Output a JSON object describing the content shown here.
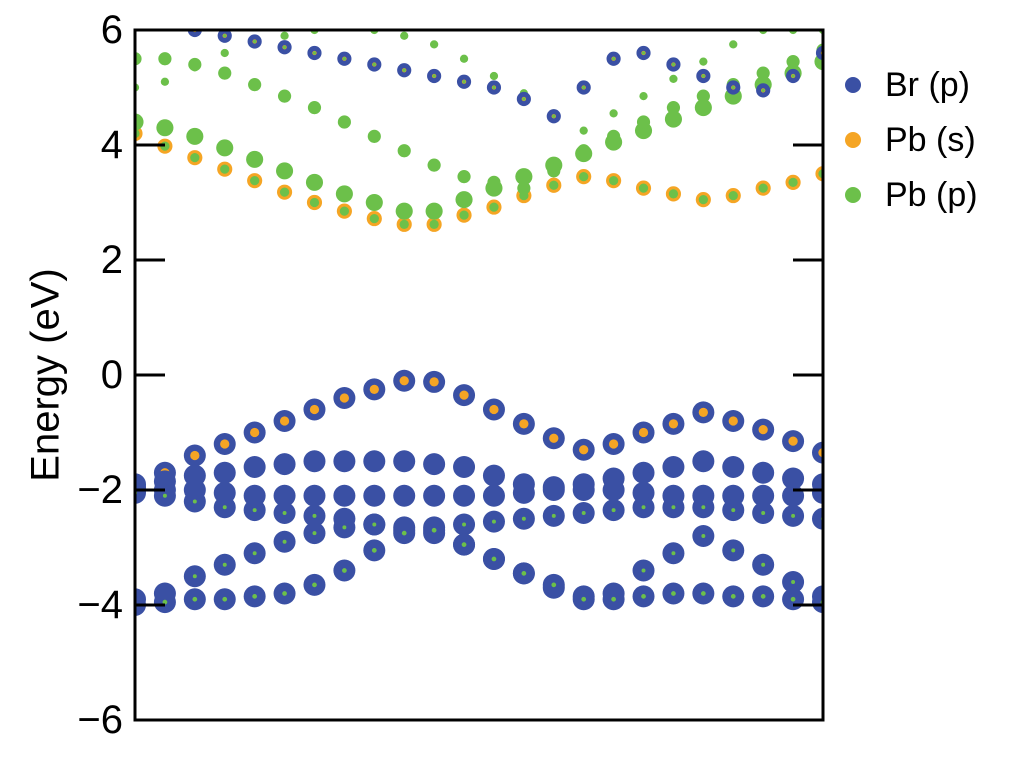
{
  "chart_data": {
    "type": "scatter",
    "title": "",
    "xlabel": "",
    "ylabel": "Energy (eV)",
    "ylim": [
      -6,
      6
    ],
    "yticks": [
      "6",
      "4",
      "2",
      "0",
      "−2",
      "−4",
      "−6"
    ],
    "ytick_values": [
      6,
      4,
      2,
      0,
      -2,
      -4,
      -6
    ],
    "xlim": [
      0,
      23
    ],
    "legend_position": "right",
    "colors": {
      "Br (p)": "#3a50a4",
      "Pb (s)": "#f5a524",
      "Pb (p)": "#6cc04a"
    },
    "series": [
      {
        "name": "Br (p)"
      },
      {
        "name": "Pb (s)"
      },
      {
        "name": "Pb (p)"
      }
    ],
    "bands": [
      {
        "role": "valence",
        "weights": {
          "Br (p)": 1.0,
          "Pb (s)": 0.35,
          "Pb (p)": 0.0
        },
        "e": [
          -1.9,
          -1.7,
          -1.4,
          -1.2,
          -1.0,
          -0.8,
          -0.6,
          -0.4,
          -0.25,
          -0.1,
          -0.12,
          -0.35,
          -0.6,
          -0.85,
          -1.1,
          -1.3,
          -1.2,
          -1.0,
          -0.85,
          -0.65,
          -0.8,
          -0.95,
          -1.15,
          -1.35
        ]
      },
      {
        "role": "valence",
        "weights": {
          "Br (p)": 1.0,
          "Pb (s)": 0.0,
          "Pb (p)": 0.0
        },
        "e": [
          -1.95,
          -1.85,
          -1.75,
          -1.7,
          -1.6,
          -1.55,
          -1.5,
          -1.5,
          -1.5,
          -1.5,
          -1.55,
          -1.6,
          -1.75,
          -1.9,
          -1.95,
          -1.9,
          -1.8,
          -1.7,
          -1.6,
          -1.5,
          -1.6,
          -1.7,
          -1.8,
          -1.9
        ]
      },
      {
        "role": "valence",
        "weights": {
          "Br (p)": 1.0,
          "Pb (s)": 0.0,
          "Pb (p)": 0.0
        },
        "e": [
          -2.0,
          -2.0,
          -2.0,
          -2.05,
          -2.1,
          -2.1,
          -2.1,
          -2.1,
          -2.1,
          -2.1,
          -2.1,
          -2.1,
          -2.1,
          -2.05,
          -2.0,
          -2.0,
          -2.0,
          -2.05,
          -2.1,
          -2.1,
          -2.1,
          -2.1,
          -2.1,
          -2.05
        ]
      },
      {
        "role": "valence",
        "weights": {
          "Br (p)": 1.0,
          "Pb (s)": 0.0,
          "Pb (p)": 0.08
        },
        "e": [
          -2.05,
          -2.1,
          -2.2,
          -2.3,
          -2.35,
          -2.4,
          -2.45,
          -2.5,
          -2.6,
          -2.65,
          -2.65,
          -2.6,
          -2.55,
          -2.5,
          -2.45,
          -2.4,
          -2.35,
          -2.3,
          -2.3,
          -2.3,
          -2.35,
          -2.4,
          -2.45,
          -2.5
        ]
      },
      {
        "role": "valence",
        "weights": {
          "Br (p)": 1.0,
          "Pb (s)": 0.0,
          "Pb (p)": 0.08
        },
        "e": [
          -3.9,
          -3.8,
          -3.5,
          -3.3,
          -3.1,
          -2.9,
          -2.75,
          -2.65,
          -2.6,
          -2.7,
          -2.75,
          -2.95,
          -3.2,
          -3.45,
          -3.7,
          -3.85,
          -3.8,
          -3.4,
          -3.1,
          -2.8,
          -3.05,
          -3.3,
          -3.6,
          -3.85
        ]
      },
      {
        "role": "valence",
        "weights": {
          "Br (p)": 1.0,
          "Pb (s)": 0.0,
          "Pb (p)": 0.12
        },
        "e": [
          -4.0,
          -3.95,
          -3.9,
          -3.9,
          -3.85,
          -3.8,
          -3.65,
          -3.4,
          -3.05,
          -2.75,
          -2.7,
          -2.95,
          -3.2,
          -3.45,
          -3.65,
          -3.9,
          -3.9,
          -3.85,
          -3.8,
          -3.8,
          -3.85,
          -3.85,
          -3.9,
          -3.95
        ]
      },
      {
        "role": "conduction",
        "weights": {
          "Br (p)": 0.0,
          "Pb (s)": 0.65,
          "Pb (p)": 0.35
        },
        "e": [
          4.2,
          3.98,
          3.78,
          3.58,
          3.38,
          3.18,
          3.0,
          2.85,
          2.72,
          2.62,
          2.62,
          2.78,
          2.92,
          3.12,
          3.3,
          3.45,
          3.38,
          3.25,
          3.15,
          3.05,
          3.12,
          3.25,
          3.35,
          3.5
        ]
      },
      {
        "role": "conduction",
        "weights": {
          "Br (p)": 0.0,
          "Pb (s)": 0.0,
          "Pb (p)": 0.75
        },
        "e": [
          4.4,
          4.3,
          4.15,
          3.95,
          3.75,
          3.55,
          3.35,
          3.15,
          3.0,
          2.85,
          2.85,
          3.05,
          3.25,
          3.45,
          3.65,
          3.85,
          4.05,
          4.25,
          4.45,
          4.65,
          4.85,
          5.05,
          5.25,
          5.45
        ]
      },
      {
        "role": "conduction",
        "weights": {
          "Br (p)": 0.0,
          "Pb (s)": 0.0,
          "Pb (p)": 0.55
        },
        "e": [
          5.5,
          5.5,
          5.4,
          5.25,
          5.05,
          4.85,
          4.65,
          4.4,
          4.15,
          3.9,
          3.65,
          3.45,
          3.35,
          3.25,
          3.55,
          3.9,
          4.15,
          4.4,
          4.65,
          4.85,
          5.05,
          5.25,
          5.45,
          5.65
        ]
      },
      {
        "role": "conduction",
        "weights": {
          "Br (p)": 0.0,
          "Pb (s)": 0.0,
          "Pb (p)": 0.3
        },
        "e": [
          5.0,
          5.1,
          5.35,
          5.6,
          5.75,
          5.9,
          6.0,
          6.05,
          6.0,
          5.9,
          5.75,
          5.5,
          5.2,
          4.9,
          4.55,
          4.25,
          4.55,
          4.85,
          5.15,
          5.45,
          5.75,
          6.0,
          6.0,
          6.0
        ]
      },
      {
        "role": "conduction",
        "weights": {
          "Br (p)": 0.6,
          "Pb (s)": 0.1,
          "Pb (p)": 0.05
        },
        "e": [
          6.2,
          6.1,
          6.0,
          5.9,
          5.8,
          5.7,
          5.6,
          5.5,
          5.4,
          5.3,
          5.2,
          5.1,
          5.0,
          4.8,
          4.5,
          5.0,
          5.5,
          5.6,
          5.4,
          5.2,
          5.0,
          4.95,
          5.2,
          5.6
        ]
      }
    ]
  }
}
